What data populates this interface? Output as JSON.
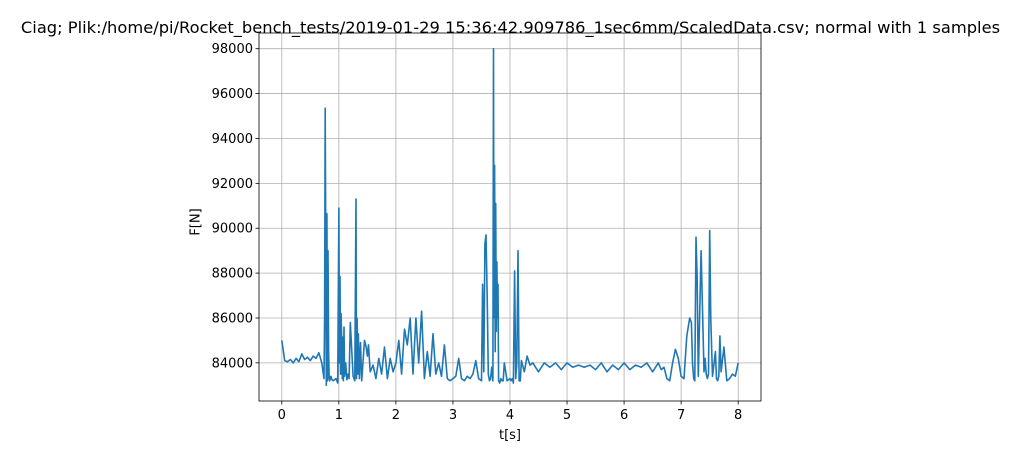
{
  "chart_data": {
    "type": "line",
    "title": "Ciag; Plik:/home/pi/Rocket_bench_tests/2019-01-29 15:36:42.909786_1sec6mm/ScaledData.csv; normal with 1 samples",
    "xlabel": "t[s]",
    "ylabel": "F[N]",
    "xlim": [
      -0.4,
      8.4
    ],
    "ylim": [
      82300,
      98700
    ],
    "grid": true,
    "color": "#1f77b4",
    "xticks": [
      0,
      1,
      2,
      3,
      4,
      5,
      6,
      7,
      8
    ],
    "xtick_labels": [
      "0",
      "1",
      "2",
      "3",
      "4",
      "5",
      "6",
      "7",
      "8"
    ],
    "yticks": [
      84000,
      86000,
      88000,
      90000,
      92000,
      94000,
      96000,
      98000
    ],
    "ytick_labels": [
      "84000",
      "86000",
      "88000",
      "90000",
      "92000",
      "94000",
      "96000",
      "98000"
    ],
    "x": [
      0.0,
      0.05,
      0.1,
      0.15,
      0.2,
      0.25,
      0.3,
      0.35,
      0.4,
      0.45,
      0.5,
      0.55,
      0.6,
      0.65,
      0.7,
      0.74,
      0.75,
      0.76,
      0.77,
      0.78,
      0.79,
      0.8,
      0.81,
      0.82,
      0.83,
      0.84,
      0.86,
      0.88,
      0.9,
      0.95,
      0.98,
      1.0,
      1.01,
      1.02,
      1.03,
      1.04,
      1.05,
      1.06,
      1.07,
      1.08,
      1.09,
      1.1,
      1.12,
      1.14,
      1.16,
      1.18,
      1.2,
      1.25,
      1.28,
      1.3,
      1.31,
      1.32,
      1.33,
      1.34,
      1.36,
      1.38,
      1.4,
      1.45,
      1.48,
      1.5,
      1.52,
      1.55,
      1.6,
      1.65,
      1.7,
      1.75,
      1.8,
      1.85,
      1.9,
      1.95,
      2.0,
      2.05,
      2.1,
      2.15,
      2.2,
      2.25,
      2.3,
      2.35,
      2.4,
      2.45,
      2.5,
      2.55,
      2.6,
      2.65,
      2.7,
      2.75,
      2.8,
      2.85,
      2.9,
      2.95,
      3.0,
      3.05,
      3.1,
      3.15,
      3.2,
      3.25,
      3.3,
      3.35,
      3.4,
      3.45,
      3.5,
      3.52,
      3.54,
      3.56,
      3.58,
      3.6,
      3.62,
      3.64,
      3.66,
      3.68,
      3.7,
      3.71,
      3.72,
      3.73,
      3.74,
      3.75,
      3.76,
      3.77,
      3.78,
      3.79,
      3.8,
      3.82,
      3.84,
      3.86,
      3.88,
      3.9,
      3.95,
      4.0,
      4.02,
      4.04,
      4.06,
      4.08,
      4.1,
      4.12,
      4.14,
      4.16,
      4.18,
      4.2,
      4.25,
      4.3,
      4.35,
      4.4,
      4.5,
      4.6,
      4.7,
      4.8,
      4.9,
      5.0,
      5.1,
      5.2,
      5.3,
      5.4,
      5.5,
      5.6,
      5.7,
      5.8,
      5.9,
      6.0,
      6.1,
      6.2,
      6.3,
      6.4,
      6.5,
      6.6,
      6.65,
      6.7,
      6.75,
      6.8,
      6.85,
      6.9,
      6.95,
      7.0,
      7.05,
      7.1,
      7.15,
      7.18,
      7.2,
      7.22,
      7.24,
      7.26,
      7.28,
      7.3,
      7.35,
      7.4,
      7.42,
      7.44,
      7.46,
      7.48,
      7.5,
      7.52,
      7.55,
      7.6,
      7.62,
      7.64,
      7.66,
      7.68,
      7.7,
      7.75,
      7.8,
      7.85,
      7.9,
      7.95,
      8.0
    ],
    "y": [
      85000,
      84100,
      84050,
      84150,
      84000,
      84200,
      84050,
      84400,
      84150,
      84250,
      84100,
      84300,
      84200,
      84450,
      84000,
      83300,
      86000,
      95350,
      90000,
      83000,
      90650,
      83200,
      89000,
      84500,
      83300,
      83200,
      83400,
      83250,
      83200,
      83300,
      83100,
      90900,
      84000,
      87850,
      83500,
      86200,
      85000,
      83300,
      85150,
      83200,
      85600,
      83400,
      84000,
      83250,
      83500,
      83300,
      85800,
      83400,
      83200,
      91300,
      83300,
      86000,
      83500,
      85300,
      83300,
      84900,
      83200,
      85000,
      84700,
      84300,
      84800,
      83600,
      83900,
      83300,
      84200,
      83500,
      84700,
      83300,
      84200,
      83600,
      84000,
      85000,
      83500,
      85500,
      84800,
      86000,
      83500,
      86000,
      84000,
      86300,
      83300,
      84500,
      83400,
      85300,
      83500,
      84000,
      83400,
      84800,
      83300,
      83200,
      83300,
      83400,
      84200,
      83300,
      83200,
      83400,
      83300,
      83500,
      84100,
      83300,
      83200,
      87500,
      83600,
      89300,
      89700,
      86900,
      83500,
      83200,
      83300,
      83800,
      83200,
      98000,
      86000,
      92800,
      84500,
      91100,
      85400,
      88500,
      86000,
      87500,
      83200,
      83100,
      83300,
      83200,
      83200,
      84000,
      83200,
      83300,
      83200,
      83300,
      83100,
      88100,
      83300,
      84000,
      89000,
      83200,
      83200,
      84100,
      83600,
      84300,
      83900,
      84000,
      83600,
      84000,
      83800,
      84000,
      83700,
      84000,
      83800,
      83900,
      83800,
      83900,
      83700,
      84000,
      83600,
      83900,
      83700,
      84000,
      83700,
      83900,
      83800,
      84000,
      83600,
      84000,
      83700,
      83800,
      83300,
      83200,
      84000,
      84600,
      84200,
      83400,
      83300,
      85200,
      86000,
      85800,
      84000,
      83300,
      83200,
      89600,
      87900,
      83400,
      89000,
      83600,
      84200,
      83500,
      83300,
      83500,
      89900,
      85900,
      83400,
      84500,
      83300,
      83200,
      83400,
      85200,
      83600,
      84700,
      83200,
      83300,
      83500,
      83400,
      84000
    ]
  }
}
